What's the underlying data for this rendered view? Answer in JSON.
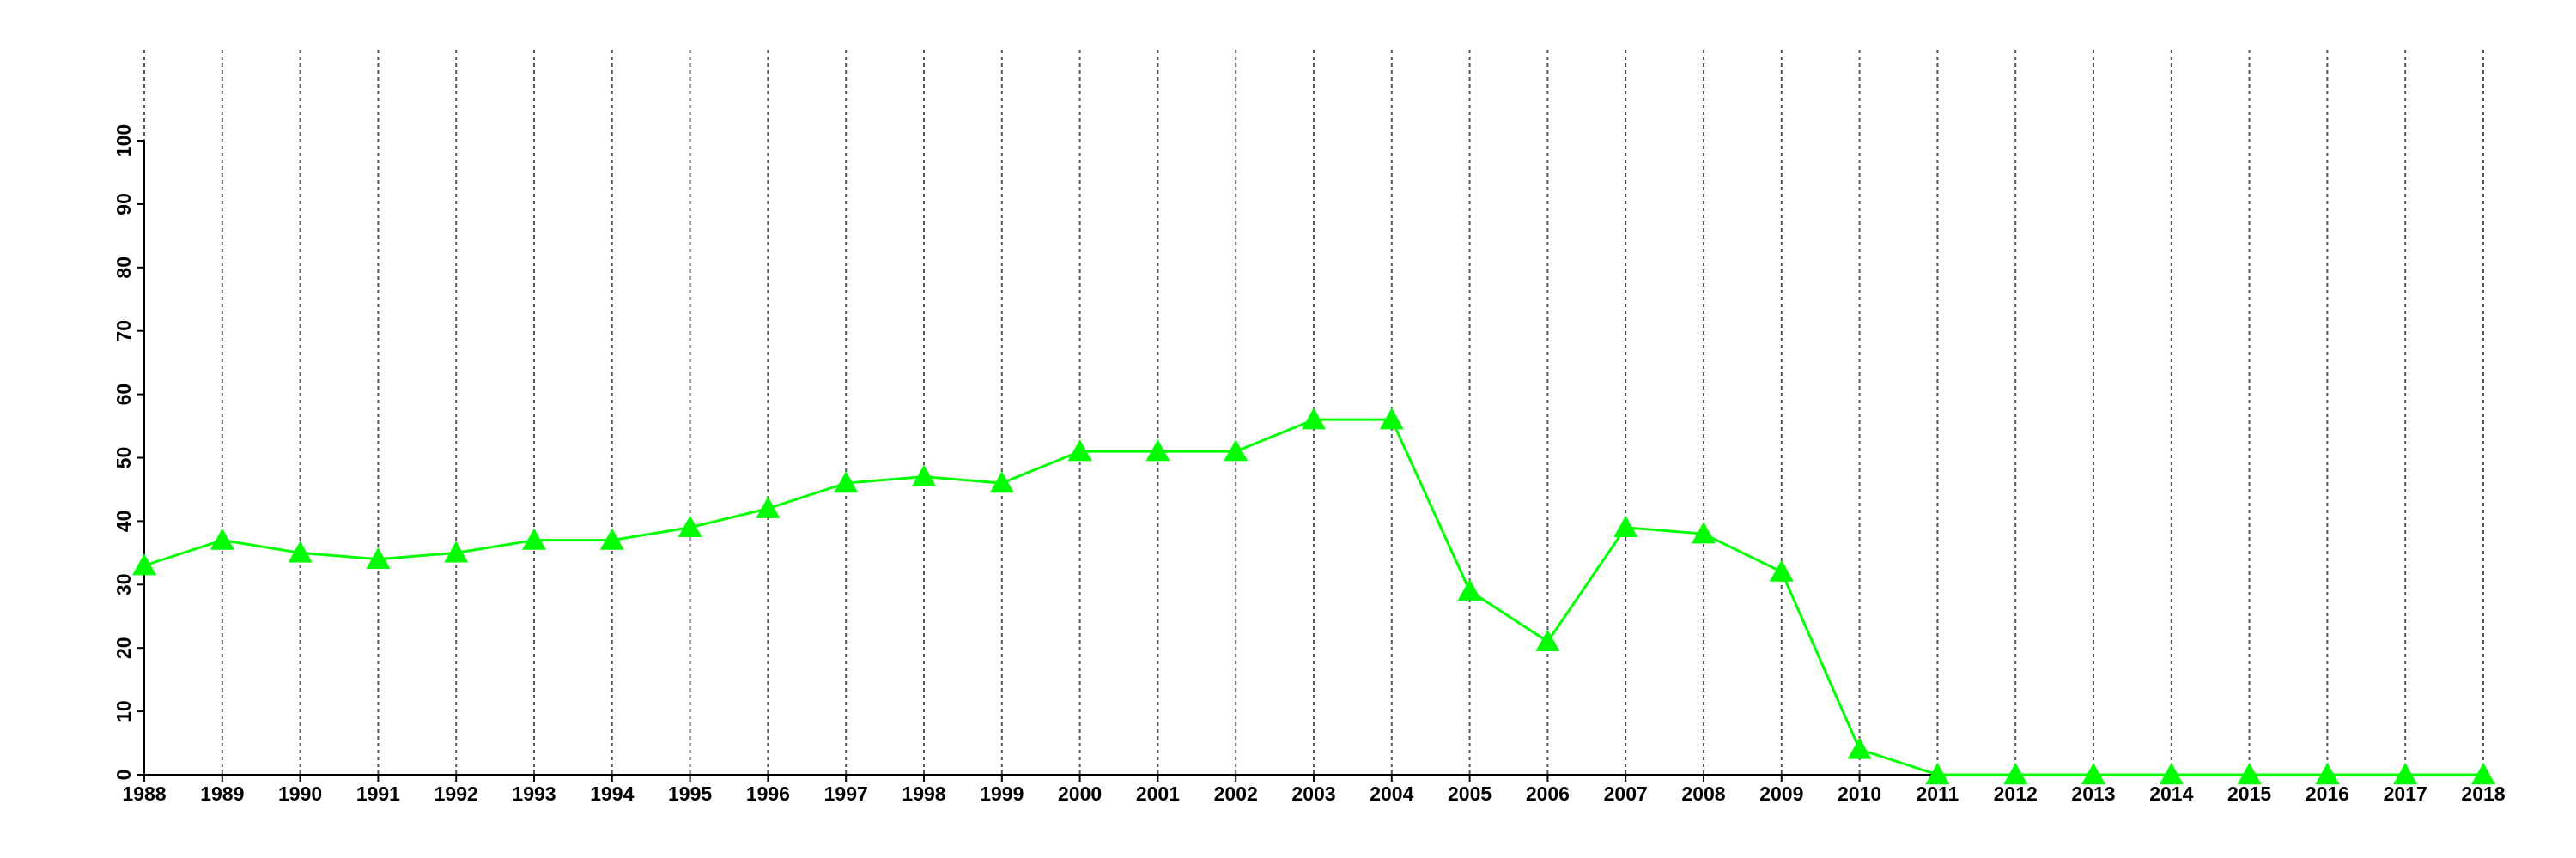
{
  "chart_data": {
    "type": "line",
    "x": [
      1988,
      1989,
      1990,
      1991,
      1992,
      1993,
      1994,
      1995,
      1996,
      1997,
      1998,
      1999,
      2000,
      2001,
      2002,
      2003,
      2004,
      2005,
      2006,
      2007,
      2008,
      2009,
      2010,
      2011,
      2012,
      2013,
      2014,
      2015,
      2016,
      2017,
      2018
    ],
    "values": [
      33,
      37,
      35,
      34,
      35,
      37,
      37,
      39,
      42,
      46,
      47,
      46,
      51,
      51,
      51,
      56,
      56,
      29,
      21,
      39,
      38,
      32,
      4,
      0,
      0,
      0,
      0,
      0,
      0,
      0,
      0
    ],
    "color": "#00ff00",
    "marker": "triangle",
    "xlim": [
      1988,
      2018
    ],
    "xticks": [
      1988,
      1989,
      1990,
      1991,
      1992,
      1993,
      1994,
      1995,
      1996,
      1997,
      1998,
      1999,
      2000,
      2001,
      2002,
      2003,
      2004,
      2005,
      2006,
      2007,
      2008,
      2009,
      2010,
      2011,
      2012,
      2013,
      2014,
      2015,
      2016,
      2017,
      2018
    ],
    "ylim": [
      0,
      100
    ],
    "yticks": [
      0,
      10,
      20,
      30,
      40,
      50,
      60,
      70,
      80,
      90,
      100
    ],
    "grid": true
  }
}
